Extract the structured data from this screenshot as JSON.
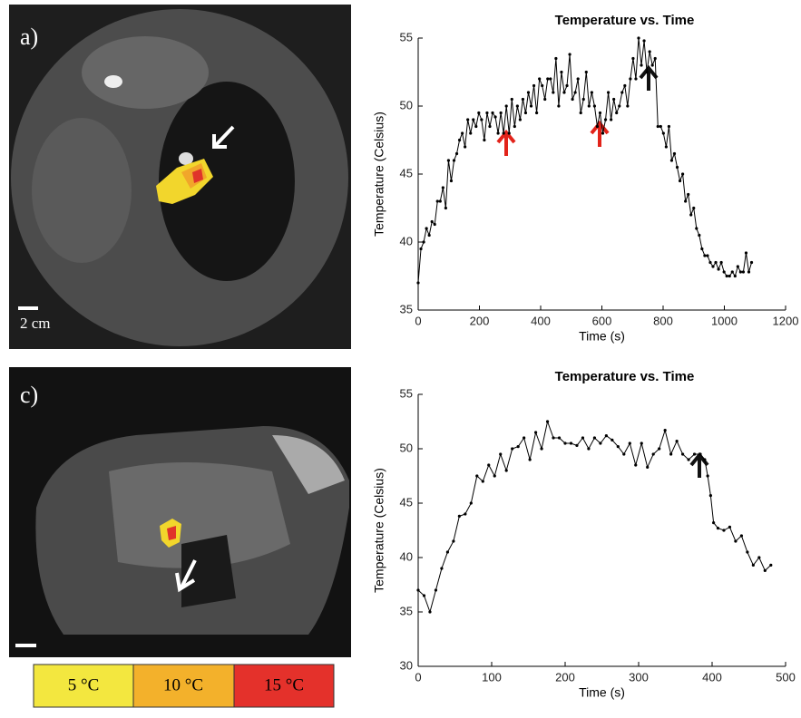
{
  "chart_data": [
    {
      "type": "line",
      "title": "Temperature vs. Time",
      "x_label": "Time (s)",
      "y_label": "Temperature (Celsius)",
      "xlim": [
        0,
        1200
      ],
      "xticks": [
        0,
        200,
        400,
        600,
        800,
        1000,
        1200
      ],
      "ylim": [
        35,
        55
      ],
      "yticks": [
        35,
        40,
        45,
        50,
        55
      ],
      "color": "#000000",
      "x": [
        0,
        9,
        18,
        27,
        36,
        45,
        54,
        63,
        72,
        81,
        90,
        99,
        108,
        117,
        126,
        135,
        144,
        153,
        162,
        171,
        180,
        189,
        198,
        207,
        216,
        225,
        234,
        243,
        252,
        261,
        270,
        279,
        288,
        297,
        306,
        315,
        324,
        333,
        342,
        351,
        360,
        369,
        378,
        387,
        396,
        405,
        414,
        423,
        432,
        441,
        450,
        459,
        468,
        477,
        486,
        495,
        504,
        513,
        522,
        531,
        540,
        549,
        558,
        567,
        576,
        585,
        594,
        603,
        612,
        621,
        630,
        639,
        648,
        657,
        666,
        675,
        684,
        693,
        702,
        711,
        720,
        729,
        738,
        747,
        756,
        765,
        774,
        783,
        792,
        801,
        810,
        819,
        828,
        837,
        846,
        855,
        864,
        873,
        882,
        891,
        900,
        909,
        918,
        927,
        936,
        945,
        954,
        963,
        972,
        981,
        990,
        999,
        1008,
        1017,
        1026,
        1035,
        1044,
        1053,
        1062,
        1071,
        1080,
        1089
      ],
      "values": [
        37,
        39.5,
        40,
        41,
        40.5,
        41.5,
        41.3,
        43,
        43,
        44,
        42.5,
        46,
        44.5,
        46,
        46.5,
        47.5,
        48,
        47,
        49,
        48,
        49,
        48.5,
        49.5,
        49,
        47.5,
        49.5,
        48.5,
        49.5,
        49.2,
        48,
        49.5,
        48,
        50,
        48,
        50.5,
        48.5,
        50,
        49,
        50.5,
        49.5,
        51,
        50,
        51.5,
        49.5,
        52,
        51.5,
        50.5,
        52,
        52,
        51,
        53.5,
        50,
        52.5,
        51,
        51.5,
        53.8,
        50.5,
        51,
        52,
        49.5,
        50.5,
        52.5,
        50,
        51,
        50,
        48.5,
        49.5,
        48,
        49,
        51,
        49,
        50.5,
        49.5,
        50,
        51,
        51.5,
        50,
        52,
        53.5,
        52,
        55,
        53,
        54.8,
        52.5,
        54,
        53,
        53.5,
        48.5,
        48.5,
        48,
        47,
        48.5,
        46,
        46.5,
        45.5,
        44.5,
        45,
        43,
        43.5,
        42,
        42.5,
        41,
        40.5,
        39.5,
        39,
        39,
        38.5,
        38.2,
        38.5,
        38,
        38.5,
        37.8,
        37.5,
        37.5,
        37.8,
        37.5,
        38.2,
        37.8,
        37.8,
        39.2,
        37.8,
        38.5
      ]
    },
    {
      "type": "line",
      "title": "Temperature vs. Time",
      "x_label": "Time (s)",
      "y_label": "Temperature (Celsius)",
      "xlim": [
        0,
        500
      ],
      "xticks": [
        0,
        100,
        200,
        300,
        400,
        500
      ],
      "ylim": [
        30,
        55
      ],
      "yticks": [
        30,
        35,
        40,
        45,
        50,
        55
      ],
      "color": "#000000",
      "x": [
        0,
        8,
        16,
        24,
        32,
        40,
        48,
        56,
        64,
        72,
        80,
        88,
        96,
        104,
        112,
        120,
        128,
        136,
        144,
        152,
        160,
        168,
        176,
        184,
        192,
        200,
        208,
        216,
        224,
        232,
        240,
        248,
        256,
        264,
        272,
        280,
        288,
        296,
        304,
        312,
        320,
        328,
        336,
        344,
        352,
        360,
        368,
        376,
        384,
        390,
        394,
        398,
        402,
        408,
        416,
        424,
        432,
        440,
        448,
        456,
        464,
        472,
        480
      ],
      "values": [
        37,
        36.5,
        35,
        37,
        39,
        40.5,
        41.5,
        43.8,
        44,
        45,
        47.5,
        47,
        48.5,
        47.5,
        49.5,
        48,
        50,
        50.2,
        51,
        49,
        51.5,
        50,
        52.5,
        51,
        51,
        50.5,
        50.5,
        50.3,
        51,
        50,
        51,
        50.5,
        51.2,
        50.8,
        50.2,
        49.5,
        50.5,
        48.5,
        50.5,
        48.3,
        49.5,
        50,
        51.7,
        49.5,
        50.7,
        49.5,
        49,
        49.5,
        49.5,
        49,
        47.5,
        45.7,
        43.2,
        42.7,
        42.5,
        42.8,
        41.5,
        42,
        40.5,
        39.3,
        40,
        38.8,
        39.3
      ]
    }
  ],
  "panels": {
    "labels": [
      "a)",
      "c)"
    ],
    "scale_bar": "2 cm",
    "legend": [
      "5 °C",
      "10 °C",
      "15 °C"
    ]
  }
}
